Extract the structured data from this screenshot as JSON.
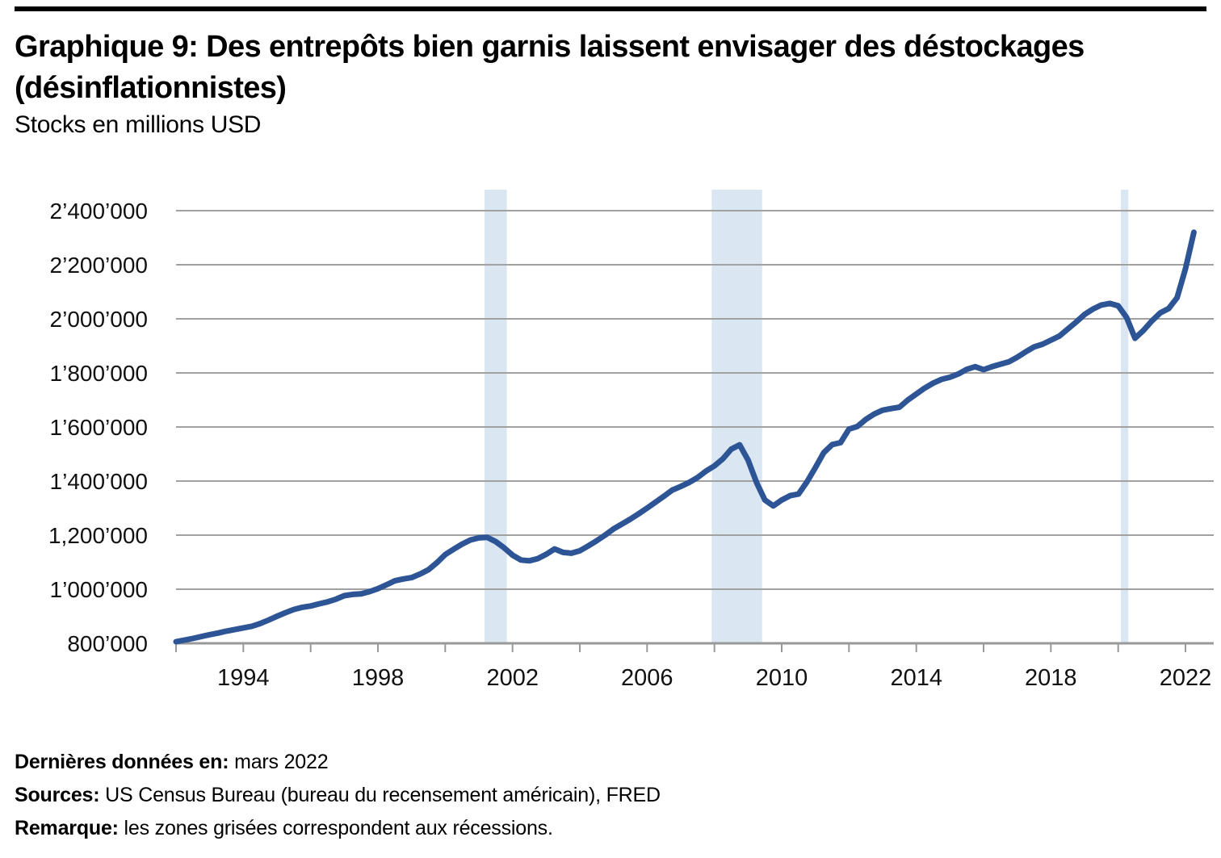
{
  "header": {
    "title_line1": "Graphique 9: Des entrepôts bien garnis laissent envisager des déstockages",
    "title_line2": "(désinflationnistes)",
    "subtitle": "Stocks en millions USD"
  },
  "footer": {
    "last_data_label": "Dernières données en:",
    "last_data_value": " mars 2022",
    "sources_label": "Sources:",
    "sources_value": " US Census Bureau (bureau du recensement américain), FRED",
    "note_label": "Remarque:",
    "note_value": " les zones grisées correspondent aux récessions."
  },
  "chart_data": {
    "type": "line",
    "title": "Graphique 9: Des entrepôts bien garnis laissent envisager des déstockages (désinflationnistes)",
    "subtitle": "Stocks en millions USD",
    "unit": "millions USD",
    "last_data_point": "mars 2022",
    "grid": true,
    "legend": "none",
    "ylim": [
      800000,
      2400000
    ],
    "x_range": [
      1992,
      2022.85
    ],
    "y_ticks": [
      {
        "value": 2400000,
        "label": "2’400’000"
      },
      {
        "value": 2200000,
        "label": "2’200’000"
      },
      {
        "value": 2000000,
        "label": "2’000’000"
      },
      {
        "value": 1800000,
        "label": "1’800’000"
      },
      {
        "value": 1600000,
        "label": "1’600’000"
      },
      {
        "value": 1400000,
        "label": "1’400’000"
      },
      {
        "value": 1200000,
        "label": "1,200’000"
      },
      {
        "value": 1000000,
        "label": "1’000’000"
      },
      {
        "value": 800000,
        "label": "800’000"
      }
    ],
    "x_axis": {
      "tick_years": [
        1992,
        1994,
        1996,
        1998,
        2000,
        2002,
        2004,
        2006,
        2008,
        2010,
        2012,
        2014,
        2016,
        2018,
        2020,
        2022
      ],
      "labels": [
        {
          "year": 1994,
          "label": "1994"
        },
        {
          "year": 1998,
          "label": "1998"
        },
        {
          "year": 2002,
          "label": "2002"
        },
        {
          "year": 2006,
          "label": "2006"
        },
        {
          "year": 2010,
          "label": "2010"
        },
        {
          "year": 2014,
          "label": "2014"
        },
        {
          "year": 2018,
          "label": "2018"
        },
        {
          "year": 2022,
          "label": "2022"
        }
      ]
    },
    "recessions": [
      {
        "start": 2001.17,
        "end": 2001.83
      },
      {
        "start": 2007.92,
        "end": 2009.42
      },
      {
        "start": 2020.08,
        "end": 2020.3
      }
    ],
    "colors": {
      "line": "#2d5596",
      "recession_band": "#dbe6f3",
      "gridline": "#a1a1a1",
      "axis": "#999999",
      "text": "#111111"
    },
    "x": [
      1992,
      1992.25,
      1992.5,
      1992.75,
      1993,
      1993.25,
      1993.5,
      1993.75,
      1994,
      1994.25,
      1994.5,
      1994.75,
      1995,
      1995.25,
      1995.5,
      1995.75,
      1996,
      1996.25,
      1996.5,
      1996.75,
      1997,
      1997.25,
      1997.5,
      1997.75,
      1998,
      1998.25,
      1998.5,
      1998.75,
      1999,
      1999.25,
      1999.5,
      1999.75,
      2000,
      2000.25,
      2000.5,
      2000.75,
      2001,
      2001.25,
      2001.5,
      2001.75,
      2002,
      2002.25,
      2002.5,
      2002.75,
      2003,
      2003.25,
      2003.5,
      2003.75,
      2004,
      2004.25,
      2004.5,
      2004.75,
      2005,
      2005.25,
      2005.5,
      2005.75,
      2006,
      2006.25,
      2006.5,
      2006.75,
      2007,
      2007.25,
      2007.5,
      2007.75,
      2008,
      2008.25,
      2008.5,
      2008.75,
      2009,
      2009.25,
      2009.5,
      2009.75,
      2010,
      2010.25,
      2010.5,
      2010.75,
      2011,
      2011.25,
      2011.5,
      2011.75,
      2012,
      2012.25,
      2012.5,
      2012.75,
      2013,
      2013.25,
      2013.5,
      2013.75,
      2014,
      2014.25,
      2014.5,
      2014.75,
      2015,
      2015.25,
      2015.5,
      2015.75,
      2016,
      2016.25,
      2016.5,
      2016.75,
      2017,
      2017.25,
      2017.5,
      2017.75,
      2018,
      2018.25,
      2018.5,
      2018.75,
      2019,
      2019.25,
      2019.5,
      2019.75,
      2020,
      2020.25,
      2020.5,
      2020.75,
      2021,
      2021.25,
      2021.5,
      2021.75,
      2022,
      2022.25
    ],
    "values": [
      806000,
      812000,
      818000,
      825000,
      832000,
      838000,
      845000,
      851000,
      857000,
      863000,
      873000,
      886000,
      900000,
      913000,
      925000,
      933000,
      938000,
      946000,
      953000,
      963000,
      976000,
      981000,
      983000,
      991000,
      1002000,
      1016000,
      1031000,
      1038000,
      1043000,
      1056000,
      1072000,
      1098000,
      1128000,
      1148000,
      1167000,
      1182000,
      1190000,
      1192000,
      1176000,
      1153000,
      1126000,
      1108000,
      1105000,
      1113000,
      1129000,
      1149000,
      1136000,
      1133000,
      1142000,
      1160000,
      1179000,
      1200000,
      1223000,
      1241000,
      1259000,
      1279000,
      1300000,
      1322000,
      1344000,
      1367000,
      1380000,
      1395000,
      1413000,
      1437000,
      1456000,
      1482000,
      1518000,
      1534000,
      1478000,
      1395000,
      1330000,
      1308000,
      1330000,
      1346000,
      1352000,
      1397000,
      1450000,
      1505000,
      1535000,
      1542000,
      1592000,
      1602000,
      1628000,
      1648000,
      1662000,
      1668000,
      1673000,
      1700000,
      1722000,
      1744000,
      1762000,
      1776000,
      1784000,
      1796000,
      1813000,
      1823000,
      1812000,
      1823000,
      1832000,
      1841000,
      1858000,
      1878000,
      1896000,
      1906000,
      1921000,
      1936000,
      1962000,
      1988000,
      2016000,
      2036000,
      2051000,
      2057000,
      2048000,
      2005000,
      1928000,
      1957000,
      1992000,
      2022000,
      2038000,
      2078000,
      2185000,
      2320000
    ]
  }
}
